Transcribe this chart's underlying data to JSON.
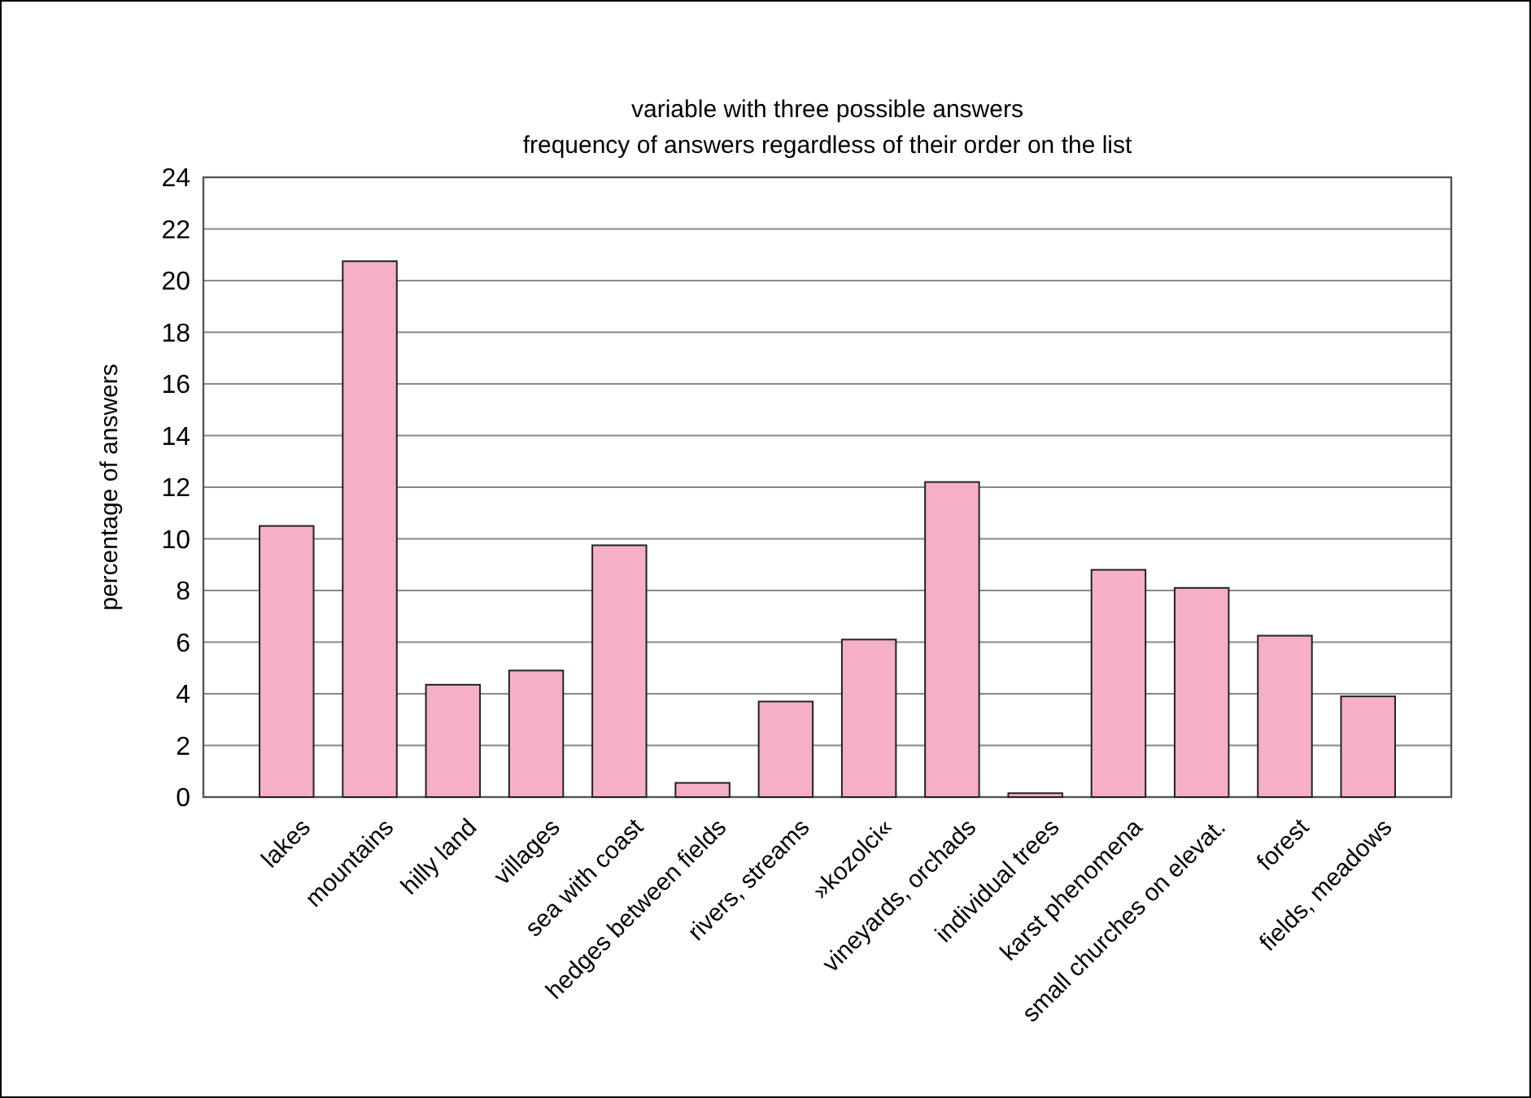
{
  "chart_data": {
    "type": "bar",
    "title": "variable with three possible answers",
    "subtitle": "frequency of answers regardless of their order on the list",
    "ylabel": "percentage of answers",
    "categories": [
      "lakes",
      "mountains",
      "hilly land",
      "villages",
      "sea with coast",
      "hedges between fields",
      "rivers, streams",
      "»kozolci«",
      "vineyards, orchads",
      "individual trees",
      "karst phenomena",
      "small churches on elevat.",
      "forest",
      "fields, meadows"
    ],
    "values": [
      10.5,
      20.75,
      4.35,
      4.9,
      9.75,
      0.55,
      3.7,
      6.1,
      12.2,
      0.15,
      8.8,
      8.1,
      6.25,
      3.9
    ],
    "color": "#f6afc8",
    "ylim": [
      0,
      24
    ],
    "yticks": [
      0,
      2,
      4,
      6,
      8,
      10,
      12,
      14,
      16,
      18,
      20,
      22,
      24
    ],
    "grid": "y"
  }
}
